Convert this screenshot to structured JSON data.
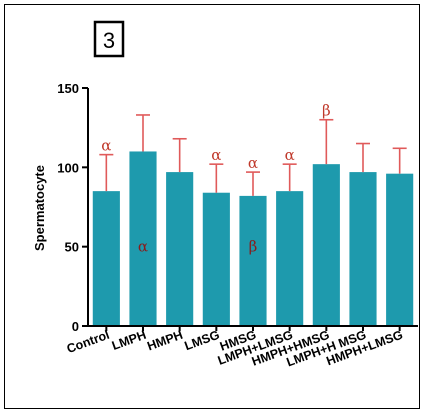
{
  "panel_label": "3",
  "colors": {
    "bar": "#1e9aad",
    "error": "#e05a5a",
    "axis": "#000000",
    "annotation": "#c0392b",
    "annotation_inner": "#8b1a1a"
  },
  "chart_data": {
    "type": "bar",
    "title": "",
    "xlabel": "",
    "ylabel": "Spermatocyte",
    "ylim": [
      0,
      150
    ],
    "yticks": [
      0,
      50,
      100,
      150
    ],
    "grid": false,
    "categories": [
      "Control",
      "LMPH",
      "HMPH",
      "LMSG",
      "HMSG",
      "LMPH+LMSG",
      "HMPH+HMSG",
      "LMPH+H MSG",
      "HMPH+LMSG"
    ],
    "values": [
      85,
      110,
      97,
      84,
      82,
      85,
      102,
      97,
      96
    ],
    "errors": [
      23,
      23,
      21,
      18,
      15,
      17,
      28,
      18,
      16
    ],
    "annotations_top": [
      "α",
      "",
      "",
      "α",
      "α",
      "α",
      "β",
      "",
      ""
    ],
    "annotations_inside": [
      "",
      "α",
      "",
      "",
      "β",
      "",
      "",
      "",
      ""
    ]
  }
}
